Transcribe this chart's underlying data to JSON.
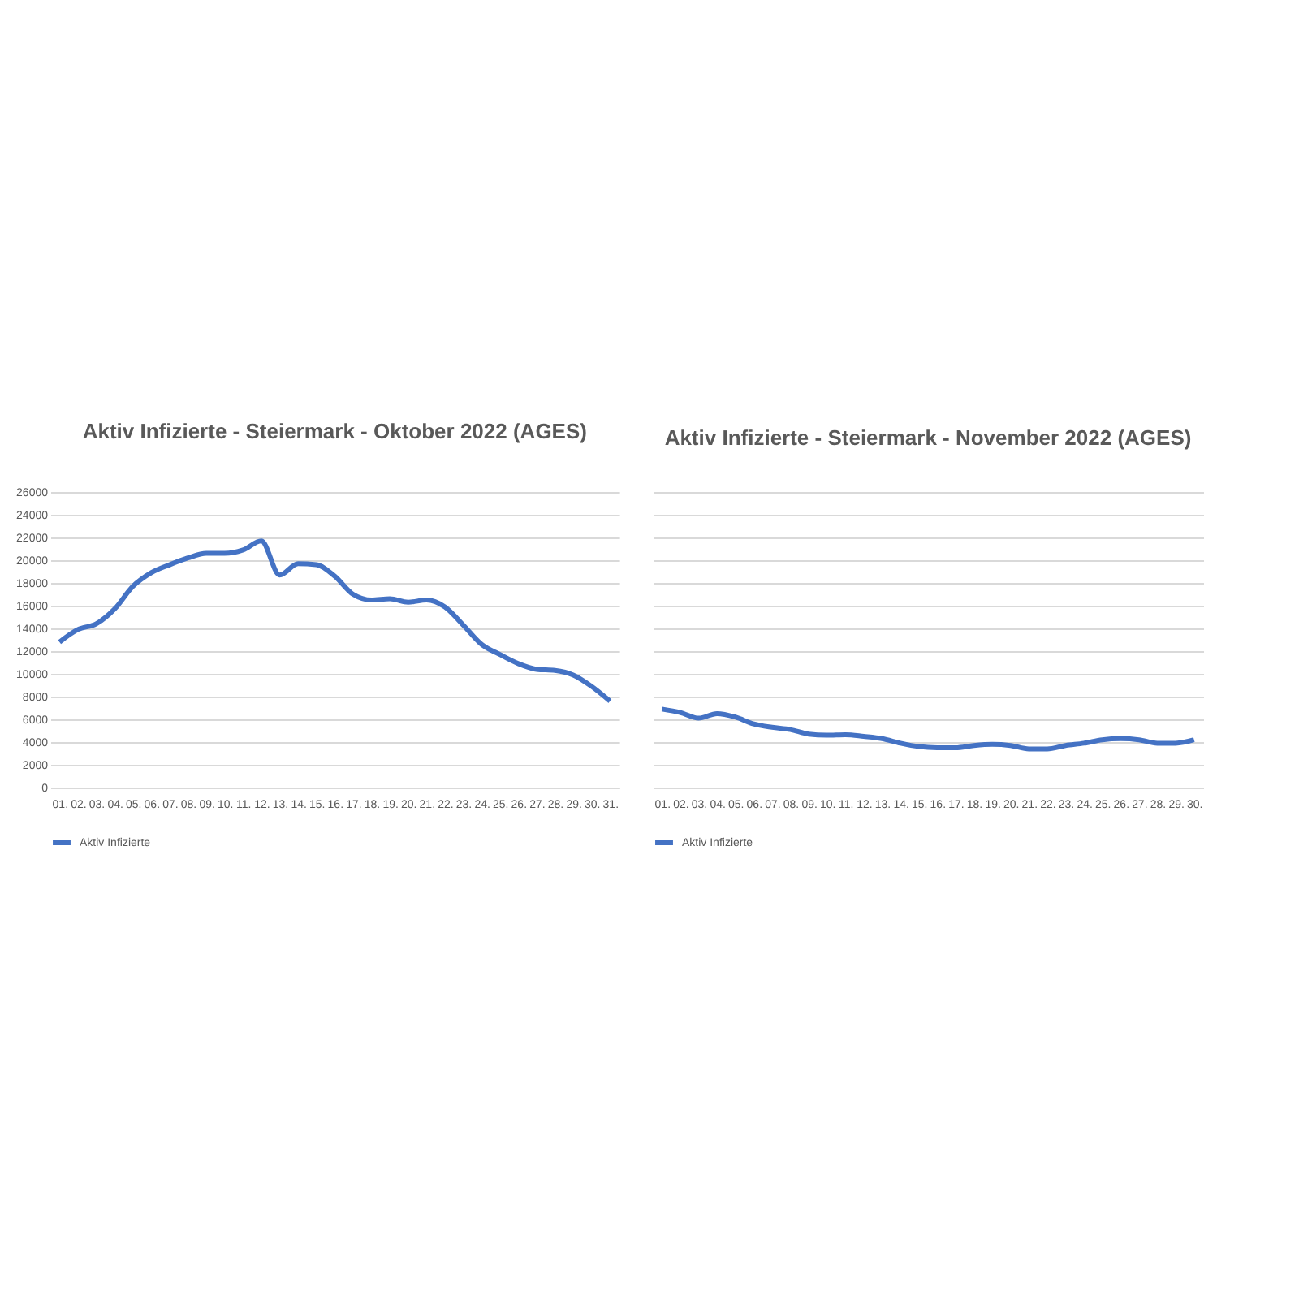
{
  "chart_data": [
    {
      "type": "line",
      "title": "Aktiv Infizierte - Steiermark - Oktober 2022 (AGES)",
      "categories": [
        "01.",
        "02.",
        "03.",
        "04.",
        "05.",
        "06.",
        "07.",
        "08.",
        "09.",
        "10.",
        "11.",
        "12.",
        "13.",
        "14.",
        "15.",
        "16.",
        "17.",
        "18.",
        "19.",
        "20.",
        "21.",
        "22.",
        "23.",
        "24.",
        "25.",
        "26.",
        "27.",
        "28.",
        "29.",
        "30.",
        "31."
      ],
      "series": [
        {
          "name": "Aktiv Infizierte",
          "color": "#4472c4",
          "values": [
            12800,
            13900,
            14400,
            15700,
            17700,
            18900,
            19600,
            20200,
            20600,
            20600,
            20900,
            21700,
            18700,
            19700,
            19600,
            18600,
            17000,
            16500,
            16600,
            16300,
            16500,
            15900,
            14300,
            12600,
            11700,
            10900,
            10400,
            10300,
            9900,
            8900,
            7600
          ]
        }
      ],
      "ylim": [
        0,
        26000
      ],
      "yticks": [
        0,
        2000,
        4000,
        6000,
        8000,
        10000,
        12000,
        14000,
        16000,
        18000,
        20000,
        22000,
        24000,
        26000
      ],
      "grid": "y",
      "legend": "bottom"
    },
    {
      "type": "line",
      "title": "Aktiv Infizierte - Steiermark - November 2022 (AGES)",
      "categories": [
        "01.",
        "02.",
        "03.",
        "04.",
        "05.",
        "06.",
        "07.",
        "08.",
        "09.",
        "10.",
        "11.",
        "12.",
        "13.",
        "14.",
        "15.",
        "16.",
        "17.",
        "18.",
        "19.",
        "20.",
        "21.",
        "22.",
        "23.",
        "24.",
        "25.",
        "26.",
        "27.",
        "28.",
        "29.",
        "30."
      ],
      "series": [
        {
          "name": "Aktiv Infizierte",
          "color": "#4472c4",
          "values": [
            6900,
            6600,
            6100,
            6500,
            6200,
            5600,
            5300,
            5100,
            4700,
            4600,
            4650,
            4500,
            4300,
            3900,
            3600,
            3500,
            3500,
            3700,
            3800,
            3700,
            3400,
            3400,
            3700,
            3900,
            4200,
            4300,
            4200,
            3900,
            3900,
            4200
          ]
        }
      ],
      "ylim": [
        0,
        26000
      ],
      "yticks": [
        0,
        2000,
        4000,
        6000,
        8000,
        10000,
        12000,
        14000,
        16000,
        18000,
        20000,
        22000,
        24000,
        26000
      ],
      "grid": "y",
      "legend": "bottom",
      "tick_labels": "x"
    }
  ]
}
